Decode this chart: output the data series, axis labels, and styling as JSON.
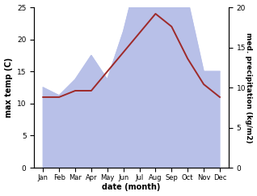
{
  "months": [
    "Jan",
    "Feb",
    "Mar",
    "Apr",
    "May",
    "Jun",
    "Jul",
    "Aug",
    "Sep",
    "Oct",
    "Nov",
    "Dec"
  ],
  "temp": [
    11,
    11,
    12,
    12,
    15,
    18,
    21,
    24,
    22,
    17,
    13,
    11
  ],
  "precip_kg": [
    10,
    9,
    11,
    14,
    11,
    17,
    25,
    20,
    21,
    21,
    12,
    12
  ],
  "temp_color": "#9e2a2a",
  "precip_fill_color": "#b8c0e8",
  "ylabel_left": "max temp (C)",
  "ylabel_right": "med. precipitation (kg/m2)",
  "xlabel": "date (month)",
  "ylim_left": [
    0,
    25
  ],
  "ylim_right": [
    0,
    20
  ],
  "yticks_left": [
    0,
    5,
    10,
    15,
    20,
    25
  ],
  "yticks_right": [
    0,
    5,
    10,
    15,
    20
  ]
}
